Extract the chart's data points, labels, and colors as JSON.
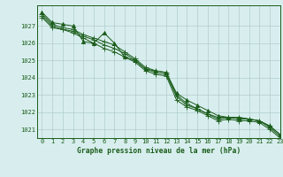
{
  "title": "Graphe pression niveau de la mer (hPa)",
  "background_color": "#d8eeee",
  "grid_color": "#b0cccc",
  "line_color": "#1a5c1a",
  "xlim": [
    -0.5,
    23
  ],
  "ylim": [
    1020.5,
    1028.2
  ],
  "yticks": [
    1021,
    1022,
    1023,
    1024,
    1025,
    1026,
    1027
  ],
  "xticks": [
    0,
    1,
    2,
    3,
    4,
    5,
    6,
    7,
    8,
    9,
    10,
    11,
    12,
    13,
    14,
    15,
    16,
    17,
    18,
    19,
    20,
    21,
    22,
    23
  ],
  "series": [
    [
      1027.8,
      1027.2,
      1027.1,
      1027.0,
      1026.1,
      1026.0,
      1026.6,
      1026.0,
      1025.2,
      1025.0,
      1024.5,
      1024.4,
      1024.3,
      1023.1,
      1022.7,
      1022.4,
      1022.1,
      1021.8,
      1021.7,
      1021.7,
      1021.6,
      1021.5,
      1021.2,
      1020.7
    ],
    [
      1027.7,
      1027.1,
      1026.9,
      1026.8,
      1026.5,
      1026.3,
      1026.1,
      1025.9,
      1025.5,
      1025.1,
      1024.6,
      1024.4,
      1024.3,
      1023.0,
      1022.5,
      1022.2,
      1021.9,
      1021.7,
      1021.7,
      1021.7,
      1021.6,
      1021.5,
      1021.2,
      1020.7
    ],
    [
      1027.6,
      1027.0,
      1026.8,
      1026.7,
      1026.4,
      1026.2,
      1025.9,
      1025.7,
      1025.4,
      1025.0,
      1024.5,
      1024.3,
      1024.2,
      1022.9,
      1022.4,
      1022.2,
      1021.9,
      1021.6,
      1021.7,
      1021.6,
      1021.6,
      1021.5,
      1021.1,
      1020.6
    ],
    [
      1027.5,
      1026.9,
      1026.8,
      1026.6,
      1026.3,
      1026.0,
      1025.7,
      1025.5,
      1025.2,
      1024.9,
      1024.4,
      1024.2,
      1024.1,
      1022.7,
      1022.3,
      1022.1,
      1021.8,
      1021.5,
      1021.6,
      1021.5,
      1021.5,
      1021.4,
      1021.0,
      1020.5
    ]
  ],
  "markers": [
    "^",
    "+",
    "+",
    "+"
  ],
  "marker_sizes": [
    3,
    4,
    4,
    4
  ],
  "title_fontsize": 5.8,
  "tick_fontsize": 5.0
}
